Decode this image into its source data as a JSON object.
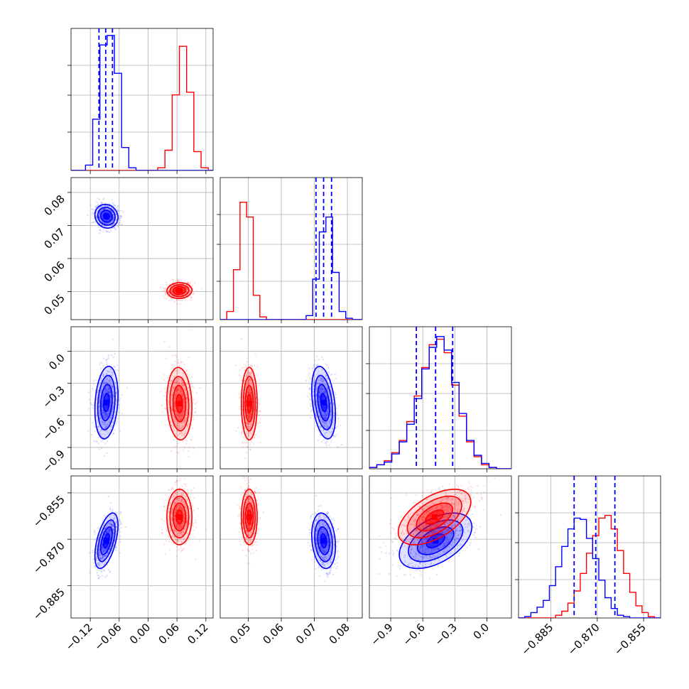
{
  "chart_data": {
    "type": "scatter",
    "title": "",
    "colors": {
      "series_a": "#0000ff",
      "series_b": "#ff0000"
    },
    "grid": true,
    "quantile_lines": {
      "series_a": [
        [
          -0.102,
          -0.088,
          -0.074
        ],
        [
          0.0705,
          0.0728,
          0.0752
        ],
        [
          -0.66,
          -0.48,
          -0.32
        ],
        [
          -0.8775,
          -0.8705,
          -0.8643
        ]
      ]
    },
    "parameters": [
      {
        "range": [
          -0.16,
          0.135
        ],
        "ticks": [
          -0.12,
          -0.06,
          0.0,
          0.06,
          0.12
        ],
        "tick_labels": [
          "−0.12",
          "−0.06",
          "0.00",
          "0.06",
          "0.12"
        ]
      },
      {
        "range": [
          0.0415,
          0.0845
        ],
        "ticks": [
          0.05,
          0.06,
          0.07,
          0.08
        ],
        "tick_labels": [
          "0.05",
          "0.06",
          "0.07",
          "0.08"
        ]
      },
      {
        "range": [
          -1.1,
          0.23
        ],
        "ticks": [
          -0.9,
          -0.6,
          -0.3,
          0.0
        ],
        "tick_labels": [
          "−0.9",
          "−0.6",
          "−0.3",
          "0.0"
        ]
      },
      {
        "range": [
          -0.8955,
          -0.8495
        ],
        "ticks": [
          -0.885,
          -0.87,
          -0.855
        ],
        "tick_labels": [
          "−0.885",
          "−0.870",
          "−0.855"
        ]
      }
    ],
    "marginals": [
      {
        "edges": [
          -0.16,
          -0.145,
          -0.13,
          -0.115,
          -0.1,
          -0.085,
          -0.07,
          -0.055,
          -0.04,
          -0.025,
          -0.01,
          0.005,
          0.02,
          0.035,
          0.05,
          0.065,
          0.08,
          0.095,
          0.11,
          0.125,
          0.135
        ],
        "series_a": [
          0,
          0,
          0.04,
          0.38,
          0.93,
          1.0,
          0.72,
          0.17,
          0.02,
          0,
          0,
          0,
          0,
          0,
          0,
          0,
          0,
          0,
          0,
          0
        ],
        "series_b": [
          0,
          0,
          0,
          0,
          0,
          0,
          0,
          0,
          0,
          0,
          0,
          0,
          0.02,
          0.15,
          0.56,
          0.92,
          0.58,
          0.14,
          0.02,
          0
        ]
      },
      {
        "edges": [
          0.0415,
          0.0435,
          0.0455,
          0.0475,
          0.0495,
          0.0515,
          0.0535,
          0.0555,
          0.0575,
          0.0595,
          0.0615,
          0.0635,
          0.0655,
          0.0675,
          0.0695,
          0.0715,
          0.0735,
          0.0755,
          0.0775,
          0.0795,
          0.0815,
          0.0835,
          0.0845
        ],
        "series_a": [
          0,
          0,
          0,
          0,
          0,
          0,
          0,
          0,
          0,
          0,
          0,
          0,
          0,
          0.03,
          0.3,
          0.65,
          0.76,
          0.35,
          0.06,
          0.01,
          0,
          0
        ],
        "series_b": [
          0,
          0.06,
          0.37,
          0.87,
          0.76,
          0.18,
          0.02,
          0,
          0,
          0,
          0,
          0,
          0,
          0,
          0,
          0,
          0,
          0,
          0,
          0,
          0,
          0
        ]
      },
      {
        "edges": [
          -1.1,
          -1.03,
          -0.96,
          -0.89,
          -0.82,
          -0.75,
          -0.68,
          -0.61,
          -0.54,
          -0.47,
          -0.4,
          -0.33,
          -0.26,
          -0.19,
          -0.12,
          -0.05,
          0.02,
          0.09,
          0.16,
          0.23
        ],
        "series_a": [
          0.01,
          0.03,
          0.05,
          0.11,
          0.2,
          0.33,
          0.52,
          0.74,
          0.9,
          0.98,
          0.88,
          0.64,
          0.41,
          0.21,
          0.1,
          0.04,
          0.01,
          0,
          0
        ],
        "series_b": [
          0.01,
          0.03,
          0.06,
          0.12,
          0.21,
          0.35,
          0.54,
          0.75,
          0.92,
          0.96,
          0.86,
          0.62,
          0.39,
          0.2,
          0.09,
          0.03,
          0.01,
          0,
          0
        ]
      },
      {
        "edges": [
          -0.8955,
          -0.8935,
          -0.8915,
          -0.8895,
          -0.8875,
          -0.8855,
          -0.8835,
          -0.8815,
          -0.8795,
          -0.8775,
          -0.8755,
          -0.8735,
          -0.8715,
          -0.8695,
          -0.8675,
          -0.8655,
          -0.8635,
          -0.8615,
          -0.8595,
          -0.8575,
          -0.8555,
          -0.8535,
          -0.8515,
          -0.8495
        ],
        "series_a": [
          0,
          0.01,
          0.04,
          0.08,
          0.13,
          0.24,
          0.38,
          0.53,
          0.66,
          0.74,
          0.73,
          0.59,
          0.44,
          0.28,
          0.15,
          0.07,
          0.02,
          0.01,
          0,
          0,
          0,
          0,
          0
        ],
        "series_b": [
          0,
          0,
          0,
          0,
          0,
          0,
          0.02,
          0.05,
          0.11,
          0.2,
          0.33,
          0.48,
          0.61,
          0.74,
          0.76,
          0.66,
          0.5,
          0.33,
          0.19,
          0.09,
          0.04,
          0.01,
          0
        ]
      }
    ],
    "pairs": [
      {
        "i": 1,
        "j": 0,
        "series_a": {
          "mean": [
            -0.0865,
            0.0728
          ],
          "sd": [
            0.012,
            0.0018
          ],
          "rho": -0.1
        },
        "series_b": {
          "mean": [
            0.065,
            0.0503
          ],
          "sd": [
            0.013,
            0.0012
          ],
          "rho": 0.05
        }
      },
      {
        "i": 2,
        "j": 0,
        "series_a": {
          "mean": [
            -0.0865,
            -0.48
          ],
          "sd": [
            0.012,
            0.17
          ],
          "rho": 0.2
        },
        "series_b": {
          "mean": [
            0.065,
            -0.49
          ],
          "sd": [
            0.013,
            0.17
          ],
          "rho": -0.1
        }
      },
      {
        "i": 2,
        "j": 1,
        "series_a": {
          "mean": [
            0.0728,
            -0.48
          ],
          "sd": [
            0.0018,
            0.17
          ],
          "rho": -0.35
        },
        "series_b": {
          "mean": [
            0.0503,
            -0.49
          ],
          "sd": [
            0.0012,
            0.17
          ],
          "rho": 0.0
        }
      },
      {
        "i": 3,
        "j": 0,
        "series_a": {
          "mean": [
            -0.0865,
            -0.8705
          ],
          "sd": [
            0.012,
            0.0045
          ],
          "rho": 0.55
        },
        "series_b": {
          "mean": [
            0.065,
            -0.8628
          ],
          "sd": [
            0.013,
            0.0045
          ],
          "rho": 0.0
        }
      },
      {
        "i": 3,
        "j": 1,
        "series_a": {
          "mean": [
            0.0728,
            -0.8705
          ],
          "sd": [
            0.0018,
            0.0045
          ],
          "rho": -0.2
        },
        "series_b": {
          "mean": [
            0.0503,
            -0.8628
          ],
          "sd": [
            0.0012,
            0.0045
          ],
          "rho": 0.0
        }
      },
      {
        "i": 3,
        "j": 2,
        "series_a": {
          "mean": [
            -0.48,
            -0.8705
          ],
          "sd": [
            0.17,
            0.0045
          ],
          "rho": 0.5
        },
        "series_b": {
          "mean": [
            -0.49,
            -0.8628
          ],
          "sd": [
            0.17,
            0.0045
          ],
          "rho": 0.55
        }
      }
    ]
  }
}
